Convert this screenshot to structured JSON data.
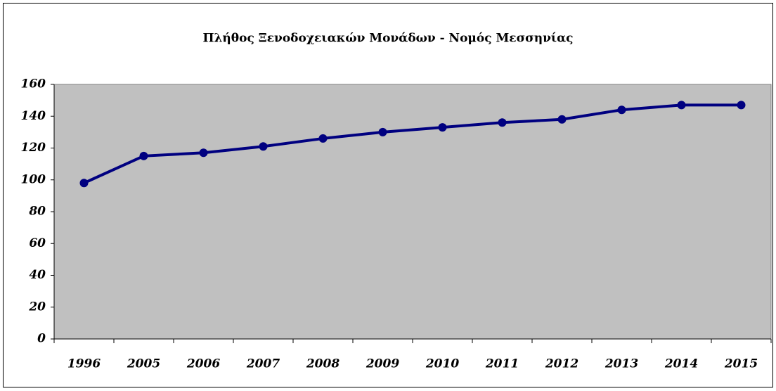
{
  "chart_data": {
    "type": "line",
    "title": "Πλήθος Ξενοδοχειακών Μονάδων - Νομός Μεσσηνίας",
    "categories": [
      "1996",
      "2005",
      "2006",
      "2007",
      "2008",
      "2009",
      "2010",
      "2011",
      "2012",
      "2013",
      "2014",
      "2015"
    ],
    "series": [
      {
        "color": "#000080",
        "values": [
          98,
          115,
          117,
          121,
          126,
          130,
          133,
          136,
          138,
          144,
          147,
          147
        ]
      }
    ],
    "ylim": [
      0,
      160
    ],
    "yticks": [
      0,
      20,
      40,
      60,
      80,
      100,
      120,
      140,
      160
    ],
    "grid": false
  }
}
